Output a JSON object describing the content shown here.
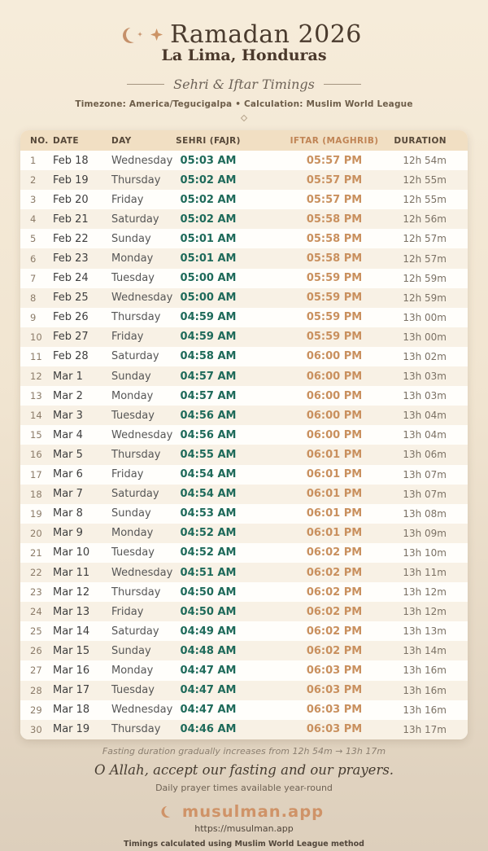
{
  "header": {
    "title": "Ramadan 2026",
    "location": "La Lima, Honduras",
    "subtitle": "Sehri & Iftar Timings",
    "meta": "Timezone: America/Tegucigalpa • Calculation: Muslim World League"
  },
  "icons": {
    "crescent": "crescent-moon-icon",
    "sparkle": "four-point-star-icon",
    "diamond": "diamond-outline-icon"
  },
  "colors": {
    "sehri_teal": "#1e6a5a",
    "iftar_tan": "#c9905e",
    "brand_tan": "#cf9368",
    "header_bg": "#f1dfc3",
    "page_bg_top": "#f6ecda",
    "page_bg_bottom": "#ddcfbc"
  },
  "table": {
    "columns": [
      "NO.",
      "DATE",
      "DAY",
      "SEHRI (FAJR)",
      "IFTAR (MAGHRIB)",
      "DURATION"
    ],
    "rows": [
      {
        "no": "1",
        "date": "Feb 18",
        "day": "Wednesday",
        "sehri": "05:03 AM",
        "iftar": "05:57 PM",
        "duration": "12h 54m"
      },
      {
        "no": "2",
        "date": "Feb 19",
        "day": "Thursday",
        "sehri": "05:02 AM",
        "iftar": "05:57 PM",
        "duration": "12h 55m"
      },
      {
        "no": "3",
        "date": "Feb 20",
        "day": "Friday",
        "sehri": "05:02 AM",
        "iftar": "05:57 PM",
        "duration": "12h 55m"
      },
      {
        "no": "4",
        "date": "Feb 21",
        "day": "Saturday",
        "sehri": "05:02 AM",
        "iftar": "05:58 PM",
        "duration": "12h 56m"
      },
      {
        "no": "5",
        "date": "Feb 22",
        "day": "Sunday",
        "sehri": "05:01 AM",
        "iftar": "05:58 PM",
        "duration": "12h 57m"
      },
      {
        "no": "6",
        "date": "Feb 23",
        "day": "Monday",
        "sehri": "05:01 AM",
        "iftar": "05:58 PM",
        "duration": "12h 57m"
      },
      {
        "no": "7",
        "date": "Feb 24",
        "day": "Tuesday",
        "sehri": "05:00 AM",
        "iftar": "05:59 PM",
        "duration": "12h 59m"
      },
      {
        "no": "8",
        "date": "Feb 25",
        "day": "Wednesday",
        "sehri": "05:00 AM",
        "iftar": "05:59 PM",
        "duration": "12h 59m"
      },
      {
        "no": "9",
        "date": "Feb 26",
        "day": "Thursday",
        "sehri": "04:59 AM",
        "iftar": "05:59 PM",
        "duration": "13h 00m"
      },
      {
        "no": "10",
        "date": "Feb 27",
        "day": "Friday",
        "sehri": "04:59 AM",
        "iftar": "05:59 PM",
        "duration": "13h 00m"
      },
      {
        "no": "11",
        "date": "Feb 28",
        "day": "Saturday",
        "sehri": "04:58 AM",
        "iftar": "06:00 PM",
        "duration": "13h 02m"
      },
      {
        "no": "12",
        "date": "Mar 1",
        "day": "Sunday",
        "sehri": "04:57 AM",
        "iftar": "06:00 PM",
        "duration": "13h 03m"
      },
      {
        "no": "13",
        "date": "Mar 2",
        "day": "Monday",
        "sehri": "04:57 AM",
        "iftar": "06:00 PM",
        "duration": "13h 03m"
      },
      {
        "no": "14",
        "date": "Mar 3",
        "day": "Tuesday",
        "sehri": "04:56 AM",
        "iftar": "06:00 PM",
        "duration": "13h 04m"
      },
      {
        "no": "15",
        "date": "Mar 4",
        "day": "Wednesday",
        "sehri": "04:56 AM",
        "iftar": "06:00 PM",
        "duration": "13h 04m"
      },
      {
        "no": "16",
        "date": "Mar 5",
        "day": "Thursday",
        "sehri": "04:55 AM",
        "iftar": "06:01 PM",
        "duration": "13h 06m"
      },
      {
        "no": "17",
        "date": "Mar 6",
        "day": "Friday",
        "sehri": "04:54 AM",
        "iftar": "06:01 PM",
        "duration": "13h 07m"
      },
      {
        "no": "18",
        "date": "Mar 7",
        "day": "Saturday",
        "sehri": "04:54 AM",
        "iftar": "06:01 PM",
        "duration": "13h 07m"
      },
      {
        "no": "19",
        "date": "Mar 8",
        "day": "Sunday",
        "sehri": "04:53 AM",
        "iftar": "06:01 PM",
        "duration": "13h 08m"
      },
      {
        "no": "20",
        "date": "Mar 9",
        "day": "Monday",
        "sehri": "04:52 AM",
        "iftar": "06:01 PM",
        "duration": "13h 09m"
      },
      {
        "no": "21",
        "date": "Mar 10",
        "day": "Tuesday",
        "sehri": "04:52 AM",
        "iftar": "06:02 PM",
        "duration": "13h 10m"
      },
      {
        "no": "22",
        "date": "Mar 11",
        "day": "Wednesday",
        "sehri": "04:51 AM",
        "iftar": "06:02 PM",
        "duration": "13h 11m"
      },
      {
        "no": "23",
        "date": "Mar 12",
        "day": "Thursday",
        "sehri": "04:50 AM",
        "iftar": "06:02 PM",
        "duration": "13h 12m"
      },
      {
        "no": "24",
        "date": "Mar 13",
        "day": "Friday",
        "sehri": "04:50 AM",
        "iftar": "06:02 PM",
        "duration": "13h 12m"
      },
      {
        "no": "25",
        "date": "Mar 14",
        "day": "Saturday",
        "sehri": "04:49 AM",
        "iftar": "06:02 PM",
        "duration": "13h 13m"
      },
      {
        "no": "26",
        "date": "Mar 15",
        "day": "Sunday",
        "sehri": "04:48 AM",
        "iftar": "06:02 PM",
        "duration": "13h 14m"
      },
      {
        "no": "27",
        "date": "Mar 16",
        "day": "Monday",
        "sehri": "04:47 AM",
        "iftar": "06:03 PM",
        "duration": "13h 16m"
      },
      {
        "no": "28",
        "date": "Mar 17",
        "day": "Tuesday",
        "sehri": "04:47 AM",
        "iftar": "06:03 PM",
        "duration": "13h 16m"
      },
      {
        "no": "29",
        "date": "Mar 18",
        "day": "Wednesday",
        "sehri": "04:47 AM",
        "iftar": "06:03 PM",
        "duration": "13h 16m"
      },
      {
        "no": "30",
        "date": "Mar 19",
        "day": "Thursday",
        "sehri": "04:46 AM",
        "iftar": "06:03 PM",
        "duration": "13h 17m"
      }
    ]
  },
  "footer": {
    "duration_note": "Fasting duration gradually increases from 12h 54m → 13h 17m",
    "dua": "O Allah, accept our fasting and our prayers.",
    "availability": "Daily prayer times available year-round",
    "brand": "musulman.app",
    "url": "https://musulman.app",
    "method_note": "Timings calculated using Muslim World League method"
  }
}
